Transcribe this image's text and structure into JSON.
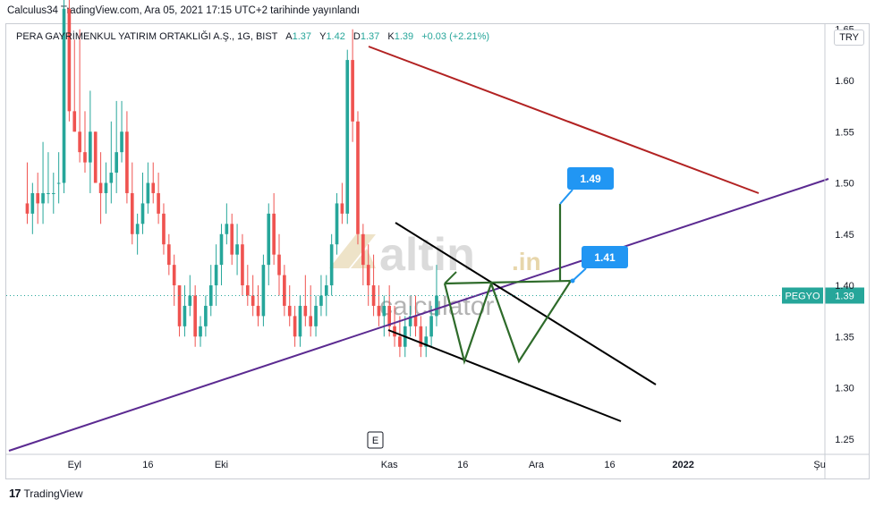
{
  "header": {
    "published": "Calculus34 TradingView.com, Ara 05, 2021 17:15 UTC+2 tarihinde yayınlandı"
  },
  "legend": {
    "symbol": "PERA GAYRİMENKUL YATIRIM ORTAKLIĞI A.Ş., 1G, BIST",
    "o_label": "A",
    "o_value": "1.37",
    "h_label": "Y",
    "h_value": "1.42",
    "l_label": "D",
    "l_value": "1.37",
    "c_label": "K",
    "c_value": "1.39",
    "change": "+0.03 (+2.21%)"
  },
  "currency": "TRY",
  "watermark": {
    "brand": "altin",
    "suffix": ".in",
    "sub": "calculator"
  },
  "pane_marker": "E",
  "footer": {
    "brand": "TradingView"
  },
  "colors": {
    "up": "#26a69a",
    "down": "#ef5350",
    "red_trend": "#b22222",
    "purple_trend": "#5b2a91",
    "pattern": "#2e6b2a",
    "label": "#2196f3",
    "wedge": "#000000"
  },
  "chart_data": {
    "type": "candlestick",
    "symbol_tag": "PEGYO",
    "last_price": "1.39",
    "ylim": [
      1.235,
      1.655
    ],
    "y_ticks": [
      "1.25",
      "1.30",
      "1.35",
      "1.40",
      "1.45",
      "1.50",
      "1.55",
      "1.60",
      "1.65"
    ],
    "x_range": [
      -4,
      152
    ],
    "x_ticks": [
      {
        "label": "Eyl",
        "bar": 9
      },
      {
        "label": "16",
        "bar": 23
      },
      {
        "label": "Eki",
        "bar": 37
      },
      {
        "label": "Kas",
        "bar": 69
      },
      {
        "label": "16",
        "bar": 83
      },
      {
        "label": "Ara",
        "bar": 97
      },
      {
        "label": "16",
        "bar": 111
      },
      {
        "label": "2022",
        "bar": 125
      },
      {
        "label": "Şu",
        "bar": 151
      }
    ],
    "candles": [
      [
        1.48,
        1.52,
        1.46,
        1.47
      ],
      [
        1.47,
        1.5,
        1.45,
        1.49
      ],
      [
        1.49,
        1.51,
        1.46,
        1.48
      ],
      [
        1.48,
        1.54,
        1.46,
        1.49
      ],
      [
        1.49,
        1.53,
        1.48,
        1.49
      ],
      [
        1.49,
        1.51,
        1.47,
        1.49
      ],
      [
        1.5,
        1.53,
        1.48,
        1.5
      ],
      [
        1.5,
        1.68,
        1.49,
        1.67
      ],
      [
        1.67,
        1.69,
        1.56,
        1.57
      ],
      [
        1.57,
        1.64,
        1.55,
        1.55
      ],
      [
        1.55,
        1.65,
        1.52,
        1.53
      ],
      [
        1.53,
        1.57,
        1.51,
        1.52
      ],
      [
        1.52,
        1.59,
        1.49,
        1.55
      ],
      [
        1.55,
        1.55,
        1.5,
        1.5
      ],
      [
        1.5,
        1.53,
        1.46,
        1.49
      ],
      [
        1.49,
        1.52,
        1.47,
        1.5
      ],
      [
        1.5,
        1.56,
        1.48,
        1.51
      ],
      [
        1.51,
        1.58,
        1.49,
        1.53
      ],
      [
        1.53,
        1.58,
        1.52,
        1.55
      ],
      [
        1.55,
        1.57,
        1.48,
        1.49
      ],
      [
        1.49,
        1.52,
        1.44,
        1.45
      ],
      [
        1.45,
        1.47,
        1.43,
        1.46
      ],
      [
        1.46,
        1.51,
        1.45,
        1.48
      ],
      [
        1.48,
        1.52,
        1.47,
        1.5
      ],
      [
        1.5,
        1.52,
        1.48,
        1.49
      ],
      [
        1.49,
        1.51,
        1.46,
        1.47
      ],
      [
        1.47,
        1.48,
        1.43,
        1.44
      ],
      [
        1.44,
        1.45,
        1.41,
        1.42
      ],
      [
        1.42,
        1.43,
        1.38,
        1.4
      ],
      [
        1.4,
        1.4,
        1.35,
        1.36
      ],
      [
        1.36,
        1.4,
        1.35,
        1.38
      ],
      [
        1.38,
        1.41,
        1.37,
        1.39
      ],
      [
        1.39,
        1.4,
        1.34,
        1.35
      ],
      [
        1.35,
        1.37,
        1.34,
        1.36
      ],
      [
        1.36,
        1.39,
        1.35,
        1.38
      ],
      [
        1.38,
        1.42,
        1.37,
        1.4
      ],
      [
        1.4,
        1.44,
        1.38,
        1.42
      ],
      [
        1.42,
        1.46,
        1.4,
        1.45
      ],
      [
        1.45,
        1.48,
        1.44,
        1.46
      ],
      [
        1.46,
        1.47,
        1.42,
        1.43
      ],
      [
        1.43,
        1.46,
        1.41,
        1.44
      ],
      [
        1.44,
        1.45,
        1.39,
        1.4
      ],
      [
        1.4,
        1.42,
        1.38,
        1.39
      ],
      [
        1.39,
        1.41,
        1.37,
        1.38
      ],
      [
        1.38,
        1.4,
        1.36,
        1.37
      ],
      [
        1.37,
        1.43,
        1.36,
        1.42
      ],
      [
        1.42,
        1.48,
        1.4,
        1.47
      ],
      [
        1.47,
        1.49,
        1.42,
        1.43
      ],
      [
        1.43,
        1.45,
        1.39,
        1.41
      ],
      [
        1.41,
        1.42,
        1.37,
        1.38
      ],
      [
        1.38,
        1.4,
        1.36,
        1.37
      ],
      [
        1.37,
        1.38,
        1.34,
        1.35
      ],
      [
        1.35,
        1.39,
        1.34,
        1.38
      ],
      [
        1.38,
        1.41,
        1.36,
        1.37
      ],
      [
        1.37,
        1.4,
        1.35,
        1.36
      ],
      [
        1.36,
        1.39,
        1.35,
        1.38
      ],
      [
        1.38,
        1.41,
        1.37,
        1.39
      ],
      [
        1.39,
        1.41,
        1.37,
        1.4
      ],
      [
        1.4,
        1.45,
        1.39,
        1.44
      ],
      [
        1.44,
        1.49,
        1.43,
        1.48
      ],
      [
        1.48,
        1.5,
        1.46,
        1.47
      ],
      [
        1.47,
        1.63,
        1.46,
        1.62
      ],
      [
        1.62,
        1.65,
        1.54,
        1.56
      ],
      [
        1.56,
        1.57,
        1.44,
        1.45
      ],
      [
        1.45,
        1.46,
        1.4,
        1.42
      ],
      [
        1.42,
        1.44,
        1.38,
        1.4
      ],
      [
        1.4,
        1.43,
        1.37,
        1.38
      ],
      [
        1.38,
        1.4,
        1.36,
        1.37
      ],
      [
        1.37,
        1.39,
        1.35,
        1.38
      ],
      [
        1.38,
        1.4,
        1.35,
        1.36
      ],
      [
        1.36,
        1.38,
        1.34,
        1.35
      ],
      [
        1.35,
        1.37,
        1.33,
        1.34
      ],
      [
        1.34,
        1.37,
        1.33,
        1.36
      ],
      [
        1.36,
        1.38,
        1.35,
        1.37
      ],
      [
        1.37,
        1.39,
        1.35,
        1.36
      ],
      [
        1.36,
        1.37,
        1.33,
        1.34
      ],
      [
        1.34,
        1.36,
        1.33,
        1.35
      ],
      [
        1.35,
        1.38,
        1.34,
        1.37
      ],
      [
        1.37,
        1.42,
        1.36,
        1.39
      ]
    ],
    "candle_x_start": 0,
    "annotations": [
      {
        "type": "price_label",
        "text": "1.49"
      },
      {
        "type": "price_label",
        "text": "1.41"
      }
    ]
  }
}
